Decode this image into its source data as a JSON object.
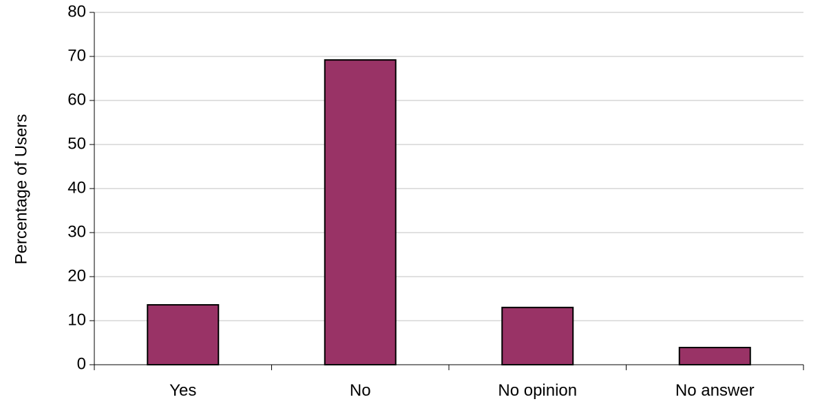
{
  "chart_data": {
    "type": "bar",
    "title": "",
    "xlabel": "",
    "ylabel": "Percentage of Users",
    "categories": [
      "Yes",
      "No",
      "No opinion",
      "No answer"
    ],
    "values": [
      13.6,
      69.2,
      13.0,
      3.9
    ],
    "ylim": [
      0,
      80
    ],
    "yticks": [
      0,
      10,
      20,
      30,
      40,
      50,
      60,
      70,
      80
    ],
    "grid": true,
    "legend": "none",
    "colors": {
      "bar_fill": "#993366",
      "bar_stroke": "#000000",
      "gridline": "#c0c0c0",
      "axis": "#000000"
    }
  }
}
